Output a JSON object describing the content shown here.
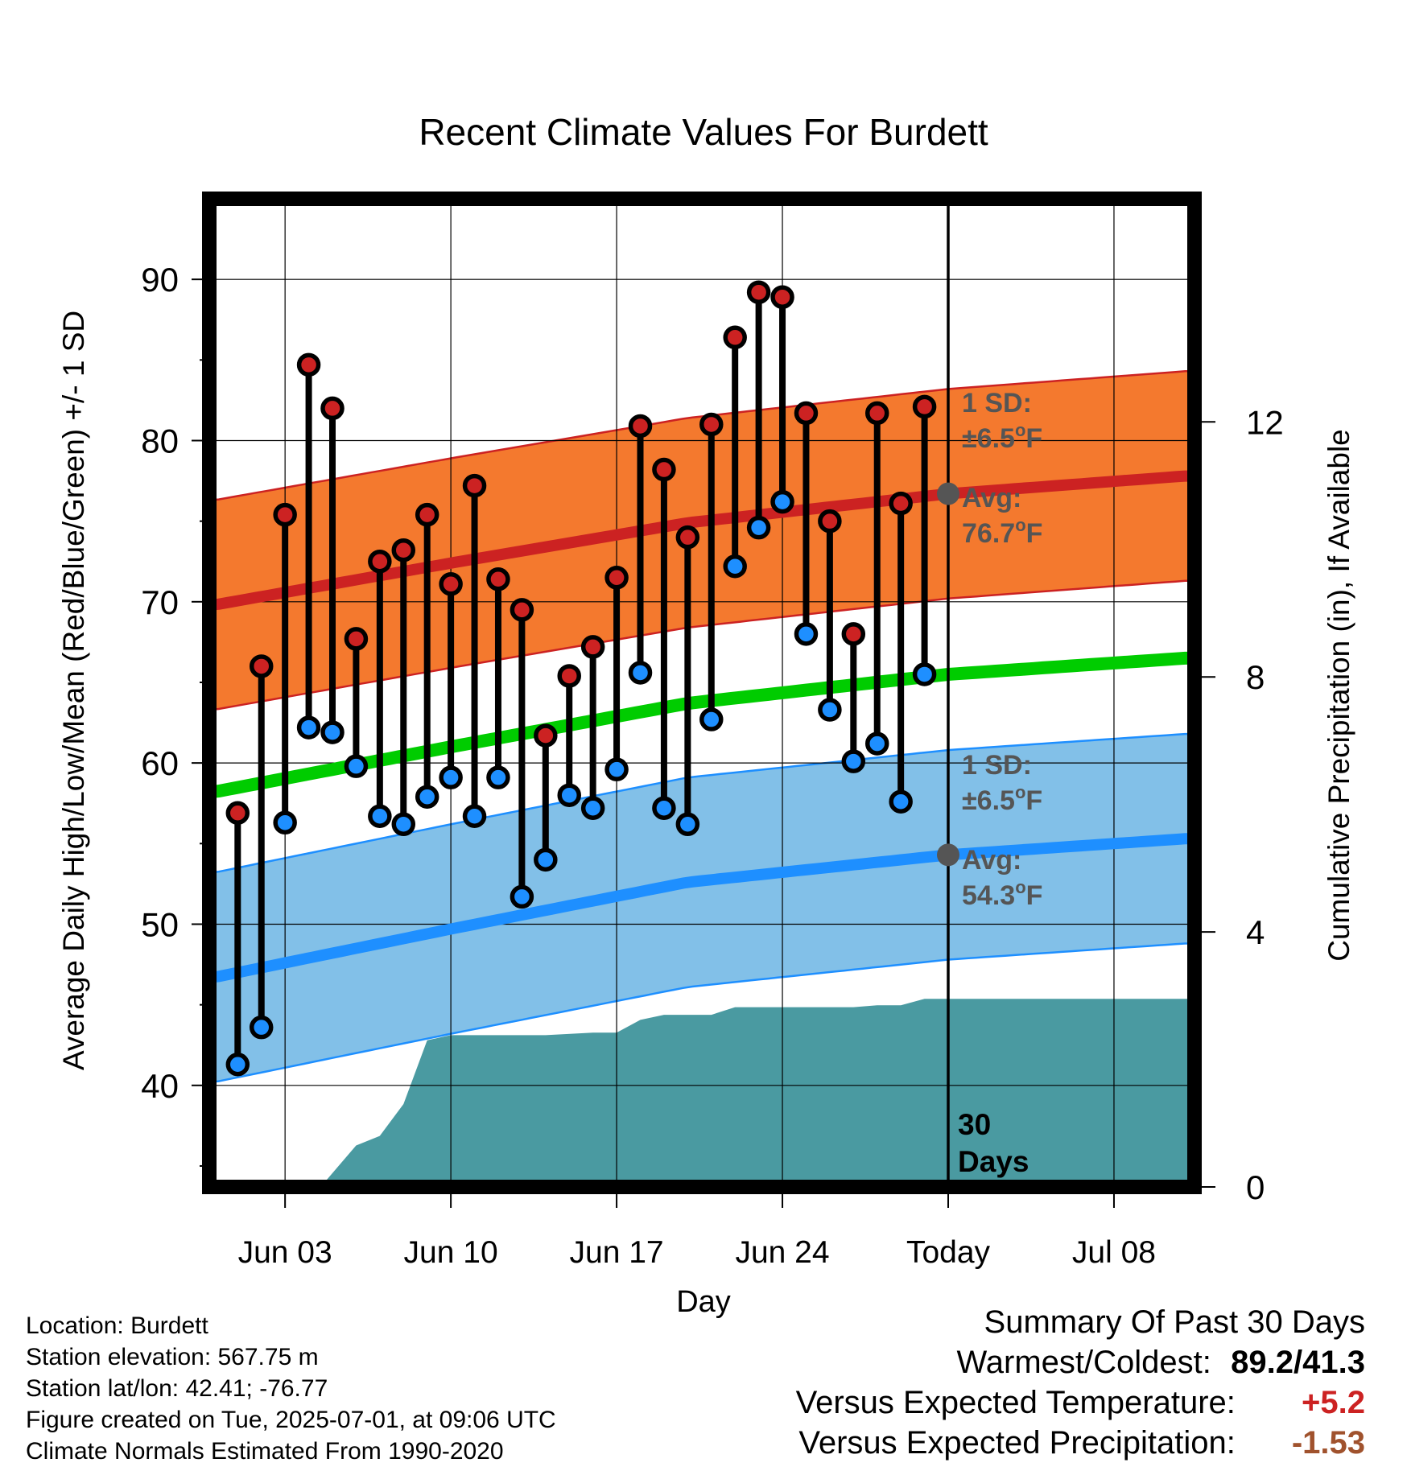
{
  "chart_data": {
    "type": "line",
    "title": "Recent Climate Values For Burdett",
    "xlabel": "Day",
    "ylabel": "Average Daily High/Low/Mean (Red/Blue/Green) +/- 1 SD",
    "y2label": "Cumulative Precipitation (in), If Available",
    "x_tick_labels": [
      "Jun 03",
      "Jun 10",
      "Jun 17",
      "Jun 24",
      "Today",
      "Jul 08"
    ],
    "x_tick_days": [
      3,
      10,
      17,
      24,
      31,
      38
    ],
    "xlim": [
      -0.2,
      41.4
    ],
    "ylim": [
      33.7,
      95.0
    ],
    "y_ticks": [
      40,
      50,
      60,
      70,
      80,
      90
    ],
    "y2lim": [
      0,
      15.5
    ],
    "y2_ticks": [
      0,
      4,
      8,
      12
    ],
    "grid": true,
    "today_day": 31,
    "today_label": "30\nDays",
    "daily_observations": {
      "day": [
        1,
        2,
        3,
        4,
        5,
        6,
        7,
        8,
        9,
        10,
        11,
        12,
        13,
        14,
        15,
        16,
        17,
        18,
        19,
        20,
        21,
        22,
        23,
        24,
        25,
        26,
        27,
        28,
        29,
        30
      ],
      "high": [
        56.9,
        66.0,
        75.4,
        84.7,
        82.0,
        67.7,
        72.5,
        73.2,
        75.4,
        71.1,
        77.2,
        71.4,
        69.5,
        61.7,
        65.4,
        67.2,
        71.5,
        80.9,
        78.2,
        74.0,
        81.0,
        86.4,
        89.2,
        88.9,
        81.7,
        75.0,
        68.0,
        81.7,
        76.1,
        82.1
      ],
      "low": [
        41.3,
        43.6,
        56.3,
        62.2,
        61.9,
        59.8,
        56.7,
        56.2,
        57.9,
        59.1,
        56.7,
        59.1,
        51.7,
        54.0,
        58.0,
        57.2,
        59.6,
        65.6,
        57.2,
        56.2,
        62.7,
        72.2,
        74.6,
        76.2,
        68.0,
        63.3,
        60.1,
        61.2,
        57.6,
        65.5
      ]
    },
    "series": [
      {
        "name": "High",
        "color": "#cc2222",
        "sd_color": "#f4792e",
        "day": [
          0,
          10,
          20,
          31,
          41
        ],
        "values": [
          69.8,
          72.4,
          74.9,
          76.7,
          77.8
        ]
      },
      {
        "name": "Mean",
        "color": "#00cc00",
        "day": [
          0,
          10,
          20,
          31,
          41
        ],
        "values": [
          58.2,
          61.0,
          63.7,
          65.5,
          66.5
        ]
      },
      {
        "name": "Low",
        "color": "#1e8fff",
        "sd_color": "#82c0e8",
        "day": [
          0,
          10,
          20,
          31,
          41
        ],
        "values": [
          46.7,
          49.7,
          52.6,
          54.3,
          55.3
        ]
      }
    ],
    "standard_deviation_f": 6.5,
    "annotations": [
      {
        "label_sd": "1 SD:",
        "label_pm": "±6.5",
        "label_avg": "Avg:",
        "label_avg_val": "76.7",
        "unit": "°F"
      },
      {
        "label_sd": "1 SD:",
        "label_pm": "±6.5",
        "label_avg": "Avg:",
        "label_avg_val": "54.3",
        "unit": "°F"
      }
    ],
    "precipitation": {
      "name": "Cumulative Precipitation",
      "color": "#4a9aa1",
      "day": [
        0,
        4.5,
        6,
        7,
        8,
        9,
        10,
        11,
        14,
        16,
        17,
        18,
        19,
        21,
        22,
        25,
        26,
        27,
        28,
        29,
        30,
        31,
        41.4
      ],
      "values": [
        0,
        0,
        0.65,
        0.8,
        1.3,
        2.3,
        2.38,
        2.38,
        2.38,
        2.42,
        2.42,
        2.62,
        2.7,
        2.7,
        2.82,
        2.82,
        2.82,
        2.82,
        2.85,
        2.85,
        2.95,
        2.95,
        2.95
      ]
    }
  },
  "info": {
    "location": "Location: Burdett",
    "elevation": "Station elevation: 567.75 m",
    "latlon": "Station lat/lon: 42.41; -76.77",
    "created": "Figure created on Tue, 2025-07-01, at 09:06 UTC",
    "normals": "Climate Normals Estimated From 1990-2020"
  },
  "summary": {
    "heading": "Summary Of Past 30 Days",
    "warm_cold_label": "Warmest/Coldest:",
    "warm_cold_value": "89.2/41.3",
    "temp_label": "Versus Expected Temperature:",
    "temp_value": "+5.2",
    "temp_color": "#cc2222",
    "precip_label": "Versus Expected Precipitation:",
    "precip_value": "-1.53",
    "precip_color": "#a0522d"
  }
}
